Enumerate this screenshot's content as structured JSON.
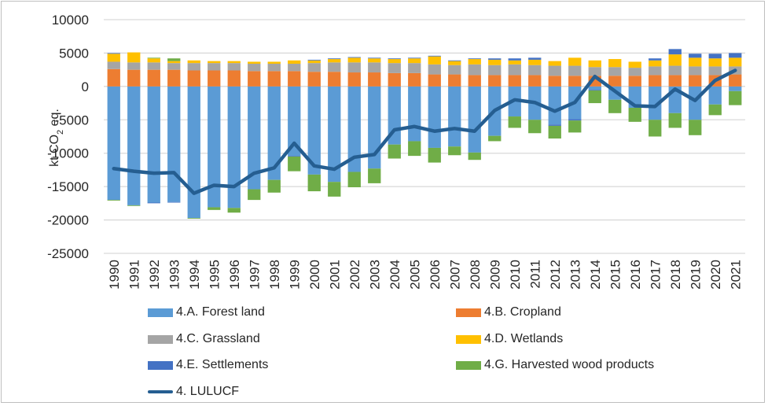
{
  "chart_data": {
    "type": "bar",
    "stacked": true,
    "title": "",
    "ylabel": "kt CO2 eq.",
    "ylim": [
      -25000,
      10000
    ],
    "yticks": [
      10000,
      5000,
      0,
      -5000,
      -10000,
      -15000,
      -20000,
      -25000
    ],
    "ytick_labels": [
      "10000",
      "5000",
      "0",
      "-5000",
      "-10000",
      "-15000",
      "-20000",
      "-25000"
    ],
    "grid": true,
    "legend_position": "bottom",
    "categories": [
      "1990",
      "1991",
      "1992",
      "1993",
      "1994",
      "1995",
      "1996",
      "1997",
      "1998",
      "1999",
      "2000",
      "2001",
      "2002",
      "2003",
      "2004",
      "2005",
      "2006",
      "2007",
      "2008",
      "2009",
      "2010",
      "2011",
      "2012",
      "2013",
      "2014",
      "2015",
      "2016",
      "2017",
      "2018",
      "2019",
      "2020",
      "2021"
    ],
    "series": [
      {
        "name": "4.A. Forest land",
        "color": "#5B9BD5",
        "values": [
          -17000,
          -17800,
          -17400,
          -17300,
          -19700,
          -18100,
          -18200,
          -15400,
          -14000,
          -10400,
          -13200,
          -14300,
          -12800,
          -12300,
          -8700,
          -8200,
          -9200,
          -9000,
          -9900,
          -7400,
          -4500,
          -5000,
          -5700,
          -4900,
          -500,
          -2000,
          -3200,
          -5000,
          -4000,
          -5000,
          -2700,
          -700
        ]
      },
      {
        "name": "4.B. Cropland",
        "color": "#ED7D31",
        "values": [
          2600,
          2500,
          2500,
          2500,
          2400,
          2400,
          2400,
          2300,
          2300,
          2300,
          2200,
          2200,
          2100,
          2100,
          2000,
          2000,
          1800,
          1800,
          1700,
          1700,
          1700,
          1700,
          1600,
          1600,
          1600,
          1600,
          1600,
          1700,
          1700,
          1700,
          1700,
          1800
        ]
      },
      {
        "name": "4.C. Grassland",
        "color": "#A5A5A5",
        "values": [
          1100,
          1100,
          1100,
          1000,
          1100,
          1100,
          1100,
          1100,
          1100,
          1100,
          1300,
          1400,
          1500,
          1500,
          1500,
          1500,
          1500,
          1400,
          1600,
          1500,
          1600,
          1500,
          1500,
          1500,
          1300,
          1300,
          1200,
          1300,
          1400,
          1300,
          1300,
          1200
        ]
      },
      {
        "name": "4.D. Wetlands",
        "color": "#FFC000",
        "values": [
          1200,
          1500,
          600,
          300,
          400,
          300,
          300,
          300,
          300,
          500,
          400,
          500,
          700,
          600,
          600,
          700,
          1200,
          600,
          800,
          800,
          600,
          800,
          700,
          1200,
          1000,
          1200,
          900,
          900,
          1700,
          1300,
          1200,
          1300
        ]
      },
      {
        "name": "4.E. Settlements",
        "color": "#4472C4",
        "values": [
          100,
          0,
          -100,
          -100,
          0,
          0,
          0,
          0,
          0,
          -100,
          100,
          100,
          100,
          100,
          100,
          100,
          100,
          100,
          100,
          200,
          300,
          300,
          -200,
          -200,
          -100,
          0,
          0,
          300,
          800,
          600,
          700,
          700
        ]
      },
      {
        "name": "4.G. Harvested wood products",
        "color": "#70AD47",
        "values": [
          -100,
          -100,
          100,
          400,
          -100,
          -400,
          -700,
          -1600,
          -1900,
          -2200,
          -2500,
          -2200,
          -2300,
          -2200,
          -2100,
          -2200,
          -2200,
          -1300,
          -1100,
          -800,
          -1700,
          -2000,
          -1900,
          -1800,
          -1900,
          -2000,
          -2100,
          -2500,
          -2200,
          -2300,
          -1600,
          -2100
        ]
      }
    ],
    "line_series": {
      "name": "4. LULUCF",
      "color": "#255E91",
      "values": [
        -12300,
        -12700,
        -13000,
        -12900,
        -16000,
        -14800,
        -15000,
        -13000,
        -12200,
        -8500,
        -11900,
        -12400,
        -10600,
        -10200,
        -6500,
        -6000,
        -6700,
        -6300,
        -6700,
        -3600,
        -2000,
        -2400,
        -3700,
        -2400,
        1500,
        -700,
        -2900,
        -3000,
        -400,
        -2100,
        900,
        2400
      ]
    }
  },
  "legend": {
    "items": [
      {
        "label": "4.A. Forest land",
        "color": "#5B9BD5",
        "kind": "bar"
      },
      {
        "label": "4.B. Cropland",
        "color": "#ED7D31",
        "kind": "bar"
      },
      {
        "label": "4.C. Grassland",
        "color": "#A5A5A5",
        "kind": "bar"
      },
      {
        "label": "4.D. Wetlands",
        "color": "#FFC000",
        "kind": "bar"
      },
      {
        "label": "4.E. Settlements",
        "color": "#4472C4",
        "kind": "bar"
      },
      {
        "label": "4.G. Harvested wood products",
        "color": "#70AD47",
        "kind": "bar"
      },
      {
        "label": "4. LULUCF",
        "color": "#255E91",
        "kind": "line"
      }
    ]
  },
  "axis": {
    "ylabel_main": "kt CO",
    "ylabel_sub": "2",
    "ylabel_tail": " eq."
  }
}
